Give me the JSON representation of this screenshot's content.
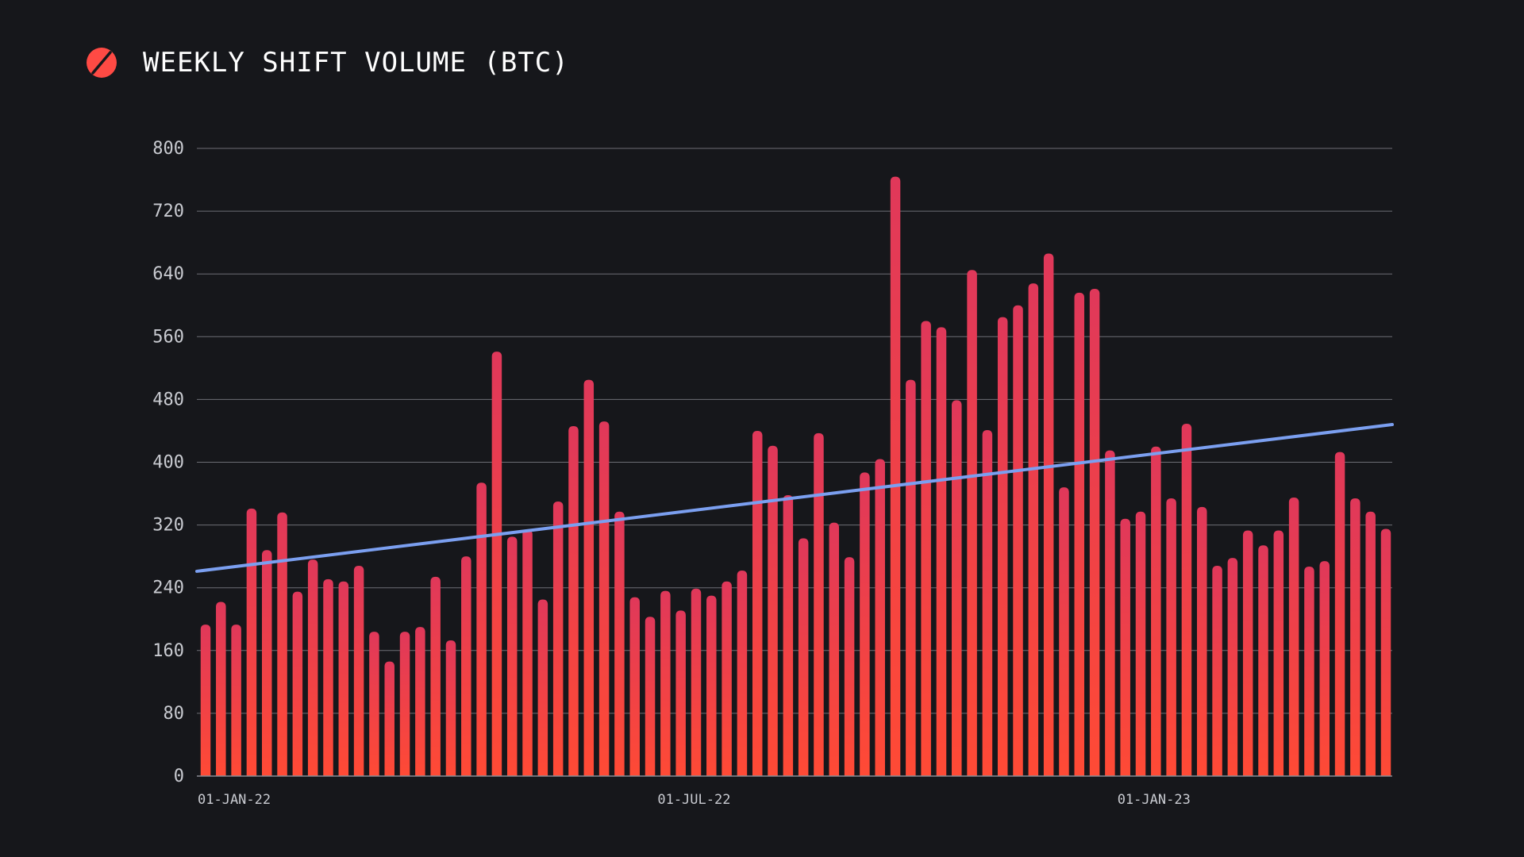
{
  "header": {
    "title": "WEEKLY SHIFT VOLUME (BTC)",
    "logo_icon": "shapeshift-logo-icon"
  },
  "colors": {
    "background": "#16171b",
    "bar_top": "#e0385a",
    "bar_bottom": "#ff4a35",
    "trend_line": "#7b9ff0",
    "grid": "#8a8c93",
    "text": "#ffffff",
    "tick_text": "#c9cbd1"
  },
  "chart_data": {
    "type": "bar",
    "title": "WEEKLY SHIFT VOLUME (BTC)",
    "xlabel": "",
    "ylabel": "",
    "ylim": [
      0,
      800
    ],
    "yticks": [
      0,
      80,
      160,
      240,
      320,
      400,
      480,
      560,
      640,
      720,
      800
    ],
    "xtick_labels": [
      {
        "label": "01-JAN-22",
        "index": 0
      },
      {
        "label": "01-JUL-22",
        "index": 30
      },
      {
        "label": "01-JAN-23",
        "index": 60
      }
    ],
    "grid": true,
    "legend": "none",
    "series": [
      {
        "values": [
          193,
          222,
          193,
          341,
          288,
          336,
          235,
          276,
          251,
          248,
          268,
          184,
          146,
          184,
          190,
          254,
          173,
          280,
          374,
          541,
          305,
          314,
          225,
          350,
          446,
          505,
          452,
          337,
          228,
          203,
          236,
          211,
          239,
          230,
          248,
          262,
          440,
          421,
          358,
          303,
          437,
          323,
          279,
          387,
          404,
          764,
          505,
          580,
          572,
          479,
          645,
          441,
          585,
          600,
          628,
          666,
          368,
          616,
          621,
          415,
          328,
          337,
          420,
          354,
          449,
          343,
          268,
          278,
          313,
          294,
          313,
          355,
          267,
          274,
          413,
          354,
          337,
          315
        ]
      }
    ],
    "trend": {
      "start": 261,
      "end": 448
    }
  }
}
